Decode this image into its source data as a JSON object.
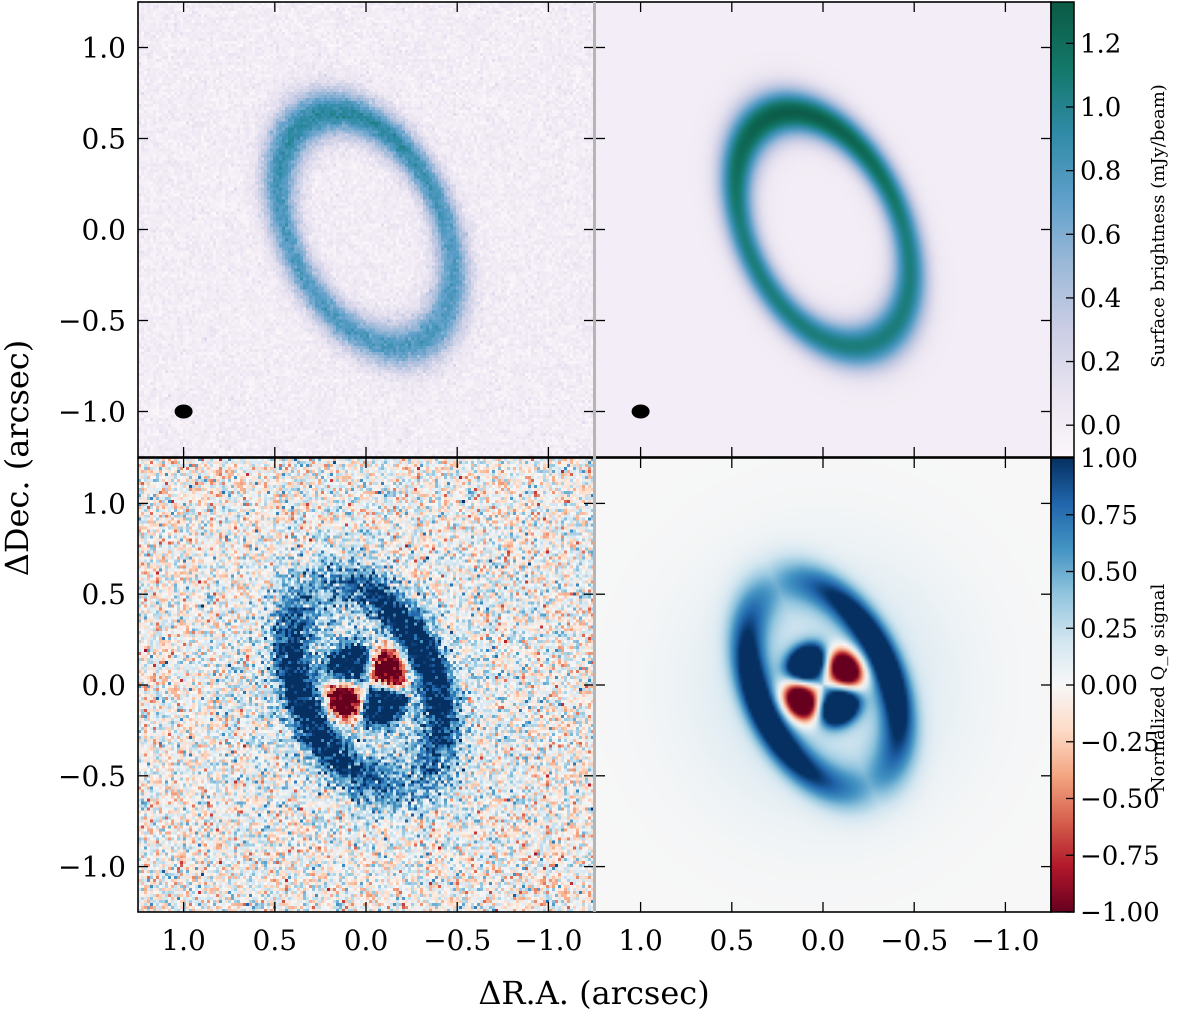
{
  "chart_data": {
    "type": "heatmap",
    "xlabel": "ΔR.A. (arcsec)",
    "ylabel": "ΔDec. (arcsec)",
    "xlim": [
      1.25,
      -1.25
    ],
    "ylim": [
      -1.25,
      1.25
    ],
    "x_ticks": [
      1.0,
      0.5,
      0.0,
      -0.5,
      -1.0
    ],
    "x_tick_labels": [
      "1.0",
      "0.5",
      "0.0",
      "−0.5",
      "−1.0"
    ],
    "y_ticks": [
      1.0,
      0.5,
      0.0,
      -0.5,
      -1.0
    ],
    "y_tick_labels": [
      "1.0",
      "0.5",
      "0.0",
      "−0.5",
      "−1.0"
    ],
    "panels": [
      {
        "row": 0,
        "col": 0,
        "kind": "ring",
        "ring_peak": 0.95,
        "noise": 0.05,
        "beam": true
      },
      {
        "row": 0,
        "col": 1,
        "kind": "ring",
        "ring_peak": 1.3,
        "noise": 0.0,
        "beam": true
      },
      {
        "row": 1,
        "col": 0,
        "kind": "qphi",
        "noise": 0.25
      },
      {
        "row": 1,
        "col": 1,
        "kind": "qphi",
        "noise": 0.0
      }
    ],
    "ring": {
      "center": [
        0.0,
        0.0
      ],
      "semi_major": 0.68,
      "semi_minor": 0.42,
      "position_angle_deg": 25,
      "width": 0.09
    },
    "beam": {
      "x": 1.0,
      "y": -1.0
    },
    "colorbars": [
      {
        "label": "Surface brightness (mJy/beam)",
        "range": [
          -0.1,
          1.33
        ],
        "ticks": [
          0.0,
          0.2,
          0.4,
          0.6,
          0.8,
          1.0,
          1.2
        ],
        "tick_labels": [
          "0.0",
          "0.2",
          "0.4",
          "0.6",
          "0.8",
          "1.0",
          "1.2"
        ],
        "colormap": [
          "#fcf6fb",
          "#e8e3f0",
          "#c9cde5",
          "#9ab8d8",
          "#5d9fc9",
          "#2f8aa6",
          "#137768",
          "#0b5a45"
        ]
      },
      {
        "label": "Normalized Q_φ signal",
        "range": [
          -1.0,
          1.0
        ],
        "ticks": [
          1.0,
          0.75,
          0.5,
          0.25,
          0.0,
          -0.25,
          -0.5,
          -0.75,
          -1.0
        ],
        "tick_labels": [
          "1.00",
          "0.75",
          "0.50",
          "0.25",
          "0.00",
          "−0.25",
          "−0.50",
          "−0.75",
          "−1.00"
        ],
        "colormap": [
          "#67001f",
          "#b2182b",
          "#d6604d",
          "#f4a582",
          "#fddbc7",
          "#f7f7f7",
          "#d1e5f0",
          "#92c5de",
          "#4393c3",
          "#2166ac",
          "#053061"
        ]
      }
    ]
  }
}
